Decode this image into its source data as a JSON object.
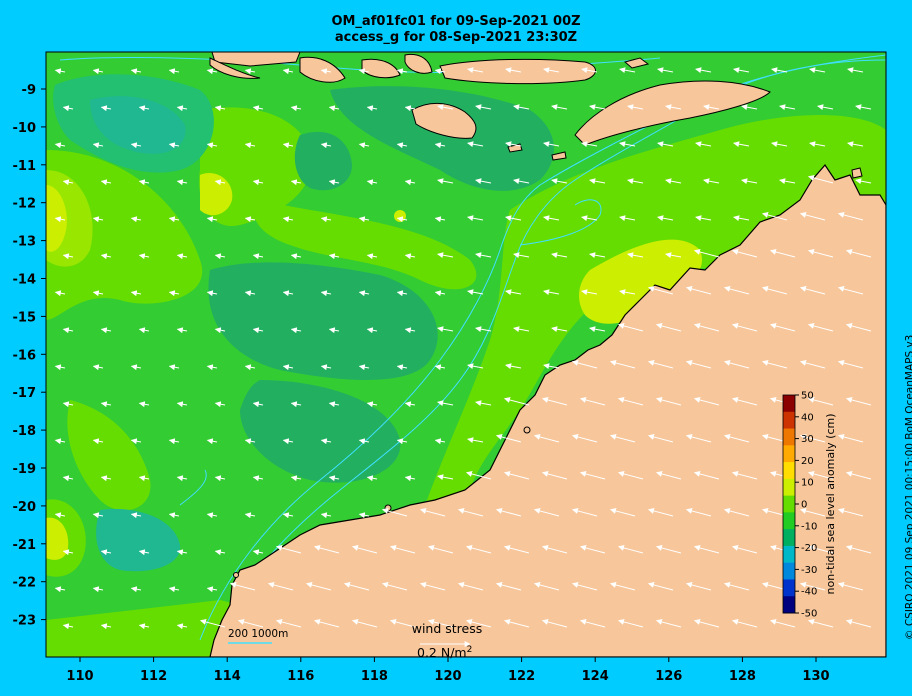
{
  "header": {
    "title_line1": "OM_af01fc01 for 09-Sep-2021 00Z",
    "title_line2": "access_g for 08-Sep-2021 23:30Z"
  },
  "axes": {
    "lon_ticks": [
      "110",
      "112",
      "114",
      "116",
      "118",
      "120",
      "122",
      "124",
      "126",
      "128",
      "130"
    ],
    "lat_ticks": [
      "-9",
      "-10",
      "-11",
      "-12",
      "-13",
      "-14",
      "-15",
      "-16",
      "-17",
      "-18",
      "-19",
      "-20",
      "-21",
      "-22",
      "-23"
    ]
  },
  "colorbar": {
    "label": "non-tidal sea level anomaly (cm)",
    "ticks": [
      "50",
      "40",
      "30",
      "20",
      "10",
      "0",
      "-10",
      "-20",
      "-30",
      "-40",
      "-50"
    ],
    "colors": [
      "#00007f",
      "#0033cc",
      "#0088dd",
      "#00b8c8",
      "#00b060",
      "#22cc22",
      "#66dd00",
      "#ccee00",
      "#ffdd00",
      "#ffaa00",
      "#ee7700",
      "#cc3300",
      "#8b0000"
    ]
  },
  "bathymetry_legend": {
    "label": "200  1000m"
  },
  "wind_legend": {
    "title": "wind stress",
    "value": "0.2 N/m",
    "unit_superscript": "2"
  },
  "credit": "© CSIRO 2021  09 Sep 2021 00:15:00 BoM OceanMAPS v3",
  "palette": {
    "ocean_base": "#33cc33",
    "land": "#f7c69a",
    "coast": "#000000",
    "isobath": "#40e0ff",
    "background": "#00ccff"
  }
}
